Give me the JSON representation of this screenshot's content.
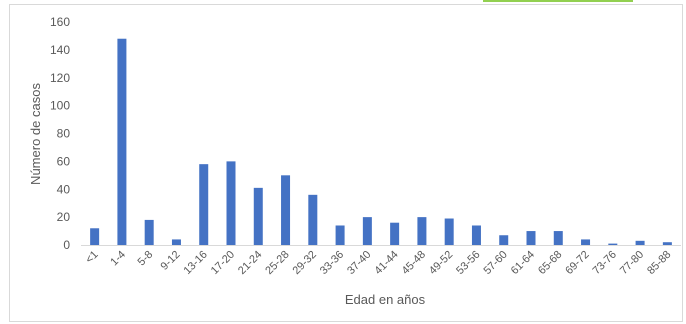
{
  "chart_data": {
    "type": "bar",
    "title": "",
    "xlabel": "Edad en años",
    "ylabel": "Número de casos",
    "ylim": [
      0,
      160
    ],
    "yticks": [
      0,
      20,
      40,
      60,
      80,
      100,
      120,
      140,
      160
    ],
    "grid": false,
    "legend": "none",
    "bar_color": "#4472c4",
    "categories": [
      "<1",
      "1-4",
      "5-8",
      "9-12",
      "13-16",
      "17-20",
      "21-24",
      "25-28",
      "29-32",
      "33-36",
      "37-40",
      "41-44",
      "45-48",
      "49-52",
      "53-56",
      "57-60",
      "61-64",
      "65-68",
      "69-72",
      "73-76",
      "77-80",
      "85-88"
    ],
    "values": [
      12,
      148,
      18,
      4,
      58,
      60,
      41,
      50,
      36,
      14,
      20,
      16,
      20,
      19,
      14,
      7,
      10,
      10,
      4,
      1,
      3,
      2
    ]
  },
  "decor": {
    "accent_color": "#92d050",
    "frame_color": "#d9d9d9"
  }
}
